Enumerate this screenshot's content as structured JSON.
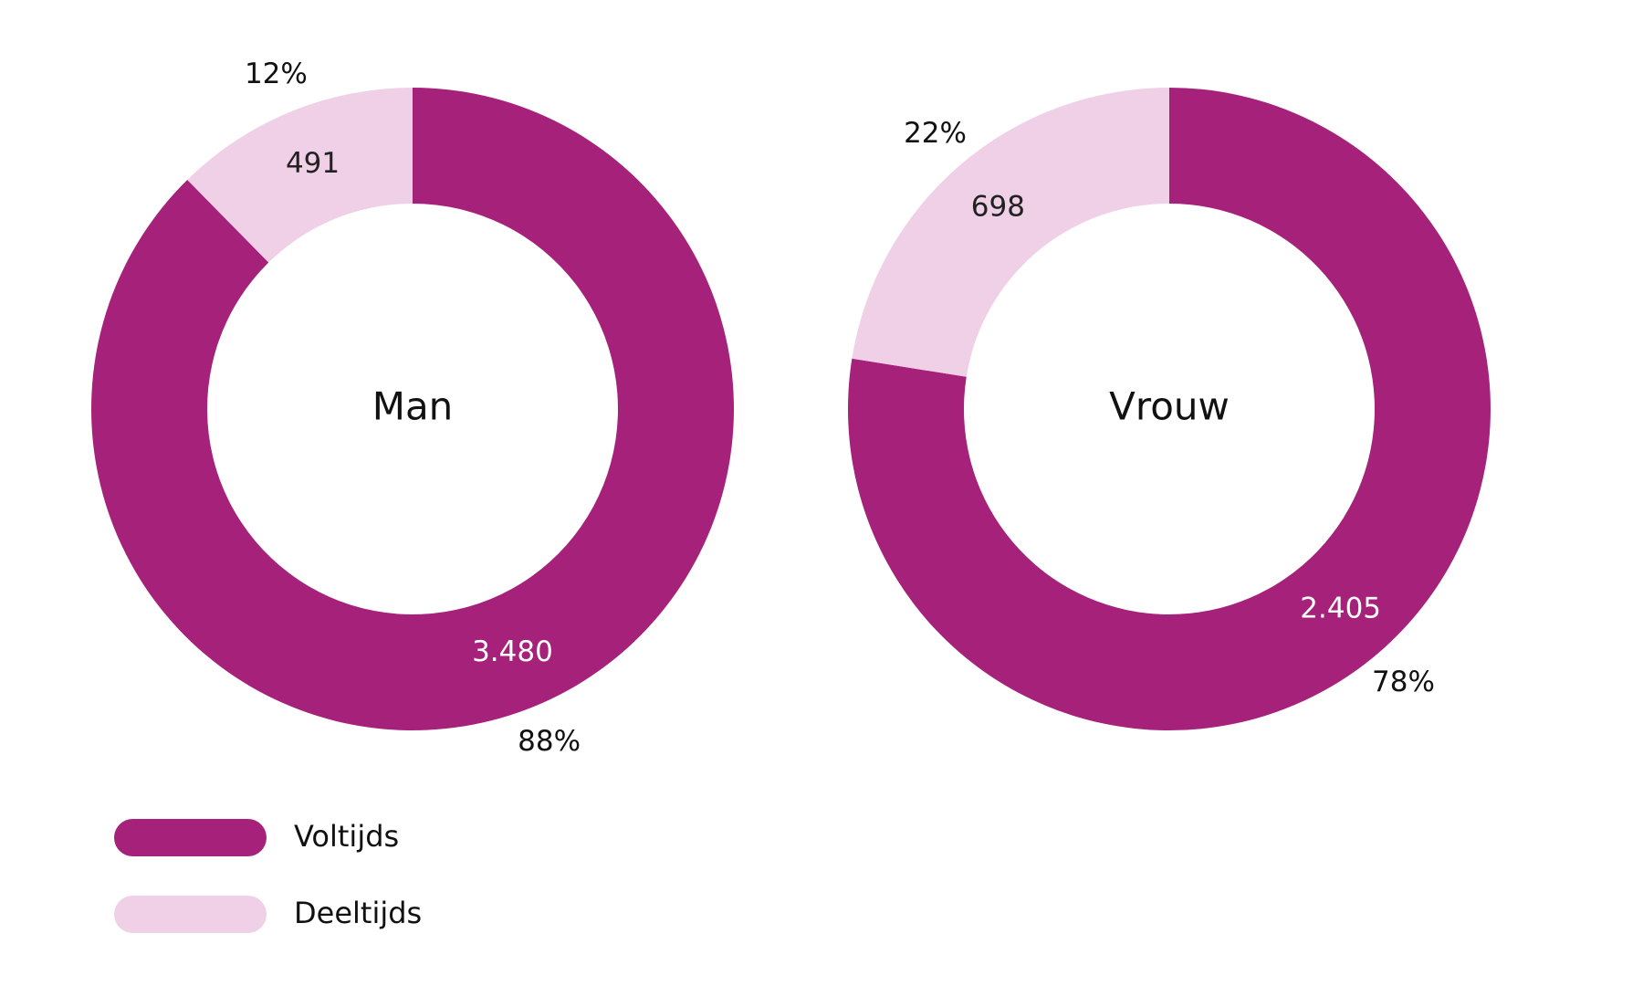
{
  "chart_data": [
    {
      "type": "donut",
      "title": "Man",
      "categories": [
        "Voltijds",
        "Deeltijds"
      ],
      "colors": [
        "#a6217a",
        "#f0d0e6"
      ],
      "values": [
        3480,
        491
      ],
      "value_labels": [
        "3.480",
        "491"
      ],
      "shares": [
        88,
        12
      ],
      "share_labels": [
        "88%",
        "12%"
      ]
    },
    {
      "type": "donut",
      "title": "Vrouw",
      "categories": [
        "Voltijds",
        "Deeltijds"
      ],
      "colors": [
        "#a6217a",
        "#f0d0e6"
      ],
      "values": [
        2405,
        698
      ],
      "value_labels": [
        "2.405",
        "698"
      ],
      "shares": [
        78,
        22
      ],
      "share_labels": [
        "78%",
        "22%"
      ]
    }
  ]
}
